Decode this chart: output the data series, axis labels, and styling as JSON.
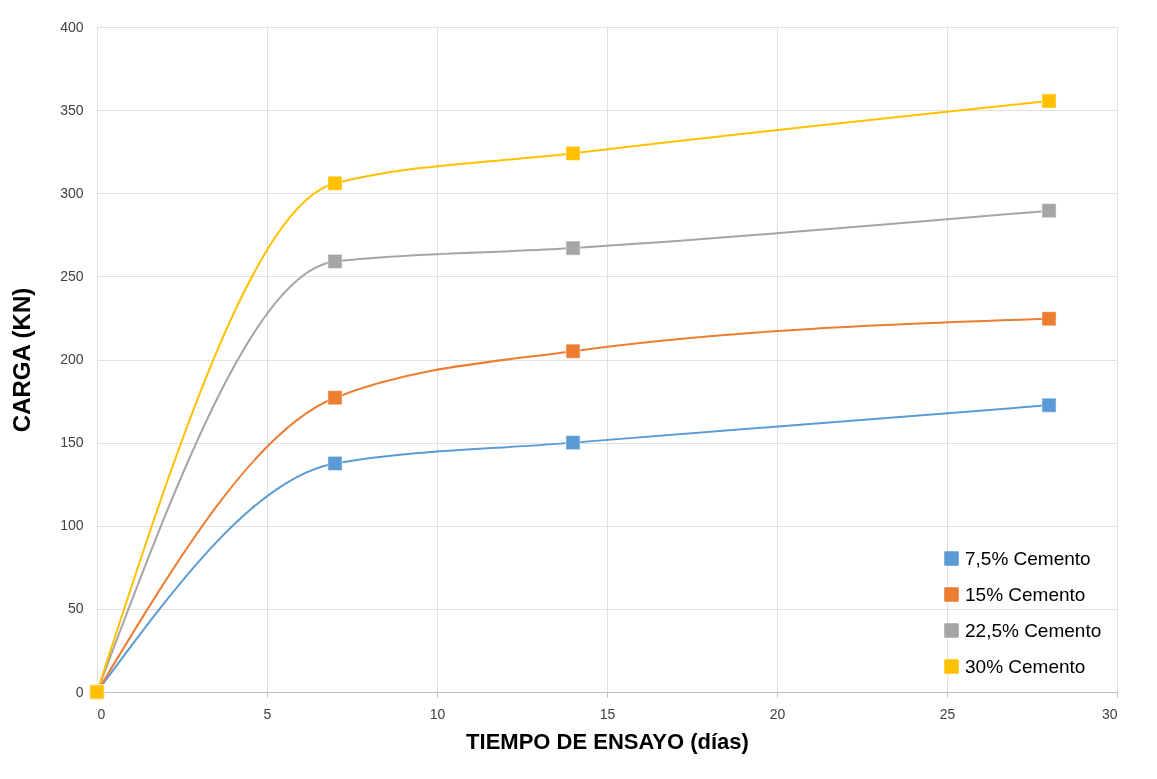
{
  "chart_data": {
    "type": "line",
    "xlabel": "TIEMPO DE ENSAYO (días)",
    "ylabel": "CARGA (KN)",
    "x": [
      0,
      7,
      14,
      28
    ],
    "series": [
      {
        "name": "7,5% Cemento",
        "color": "#5b9bd5",
        "values": [
          0,
          137.5,
          150,
          172.5
        ]
      },
      {
        "name": "15% Cemento",
        "color": "#ed7d31",
        "values": [
          0,
          177,
          205,
          224.5
        ]
      },
      {
        "name": "22,5% Cemento",
        "color": "#a5a5a5",
        "values": [
          0,
          259,
          267,
          289.5
        ]
      },
      {
        "name": "30% Cemento",
        "color": "#ffc000",
        "values": [
          0,
          306,
          324,
          355.5
        ]
      }
    ],
    "xlim": [
      0,
      30
    ],
    "xticks": [
      0,
      5,
      10,
      15,
      20,
      25,
      30
    ],
    "ylim": [
      0,
      400
    ],
    "yticks": [
      0,
      50,
      100,
      150,
      200,
      250,
      300,
      350,
      400
    ],
    "grid": true,
    "legend": "bottom right",
    "marker": "square",
    "line_style": "solid"
  }
}
